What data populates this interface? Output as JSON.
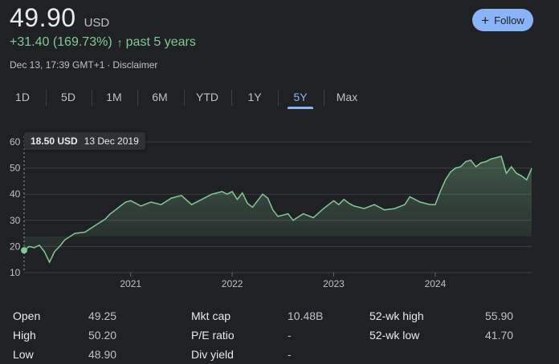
{
  "quote": {
    "price": "49.90",
    "currency": "USD",
    "change": "+31.40 (169.73%)",
    "period": "past 5 years",
    "timestamp": "Dec 13, 17:39 GMT+1",
    "disclaimer": "Disclaimer"
  },
  "follow": {
    "label": "Follow",
    "icon": "plus-icon"
  },
  "ranges": [
    "1D",
    "5D",
    "1M",
    "6M",
    "YTD",
    "1Y",
    "5Y",
    "Max"
  ],
  "active_range": "5Y",
  "tooltip": {
    "price": "18.50 USD",
    "date": "13 Dec 2019"
  },
  "colors": {
    "accent": "#8ab4f8",
    "positive": "#81c995"
  },
  "chart_data": {
    "type": "area",
    "y_ticks": [
      60,
      50,
      40,
      30,
      20,
      10
    ],
    "ylim": [
      10,
      60
    ],
    "x_ticks": [
      "2021",
      "2022",
      "2023",
      "2024"
    ],
    "xlim": [
      2019.95,
      2024.95
    ],
    "grid": true,
    "series": [
      {
        "x": [
          2019.95,
          2020.0,
          2020.05,
          2020.1,
          2020.15,
          2020.2,
          2020.25,
          2020.3,
          2020.35,
          2020.45,
          2020.55,
          2020.65,
          2020.75,
          2020.8,
          2020.85,
          2020.9,
          2020.95,
          2021.0,
          2021.1,
          2021.2,
          2021.3,
          2021.4,
          2021.5,
          2021.6,
          2021.7,
          2021.8,
          2021.85,
          2021.9,
          2021.95,
          2022.0,
          2022.05,
          2022.1,
          2022.15,
          2022.2,
          2022.25,
          2022.3,
          2022.35,
          2022.4,
          2022.45,
          2022.5,
          2022.55,
          2022.6,
          2022.7,
          2022.8,
          2022.9,
          2022.95,
          2023.0,
          2023.05,
          2023.1,
          2023.15,
          2023.2,
          2023.3,
          2023.4,
          2023.5,
          2023.6,
          2023.7,
          2023.75,
          2023.8,
          2023.85,
          2023.9,
          2023.95,
          2024.0,
          2024.05,
          2024.1,
          2024.15,
          2024.2,
          2024.25,
          2024.3,
          2024.35,
          2024.4,
          2024.45,
          2024.5,
          2024.55,
          2024.6,
          2024.65,
          2024.7,
          2024.75,
          2024.8,
          2024.85,
          2024.9,
          2024.95
        ],
        "y": [
          18.5,
          20.0,
          19.5,
          20.5,
          18.0,
          14.0,
          18.0,
          20.0,
          22.5,
          25.0,
          25.5,
          28.0,
          30.5,
          32.5,
          34.0,
          35.5,
          37.0,
          37.5,
          35.5,
          37.0,
          36.0,
          38.5,
          39.5,
          36.0,
          38.0,
          40.0,
          40.5,
          41.0,
          40.0,
          41.0,
          38.0,
          40.5,
          36.5,
          35.0,
          37.5,
          40.0,
          38.5,
          34.0,
          31.5,
          32.0,
          32.5,
          30.0,
          32.5,
          31.0,
          34.5,
          36.0,
          37.5,
          36.0,
          38.0,
          36.5,
          35.5,
          34.5,
          36.0,
          34.0,
          34.5,
          36.0,
          39.0,
          38.0,
          37.0,
          36.5,
          36.0,
          36.0,
          41.0,
          45.5,
          48.5,
          50.0,
          50.5,
          52.5,
          53.0,
          50.5,
          52.0,
          52.5,
          53.5,
          54.0,
          54.5,
          48.0,
          50.5,
          48.0,
          47.0,
          45.5,
          49.9
        ]
      }
    ]
  },
  "stats": [
    [
      {
        "label": "Open",
        "value": "49.25"
      },
      {
        "label": "Mkt cap",
        "value": "10.48B"
      },
      {
        "label": "52-wk high",
        "value": "55.90"
      }
    ],
    [
      {
        "label": "High",
        "value": "50.20"
      },
      {
        "label": "P/E ratio",
        "value": "-"
      },
      {
        "label": "52-wk low",
        "value": "41.70"
      }
    ],
    [
      {
        "label": "Low",
        "value": "48.90"
      },
      {
        "label": "Div yield",
        "value": "-"
      }
    ]
  ]
}
